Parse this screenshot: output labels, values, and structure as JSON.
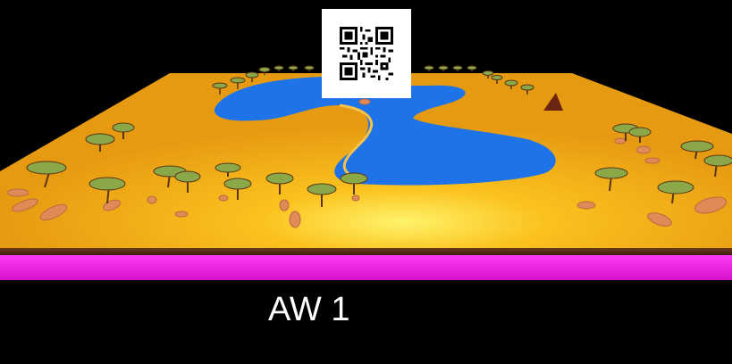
{
  "level": {
    "label": "AW 1"
  },
  "scene": {
    "terrain_color": "#f2a81c",
    "water_color": "#1e73e8",
    "base_stripe_color": "#f21ee8",
    "background_color": "#000000",
    "objects": [
      "acacia-tree",
      "rock",
      "tent",
      "lake",
      "qr-code"
    ]
  }
}
